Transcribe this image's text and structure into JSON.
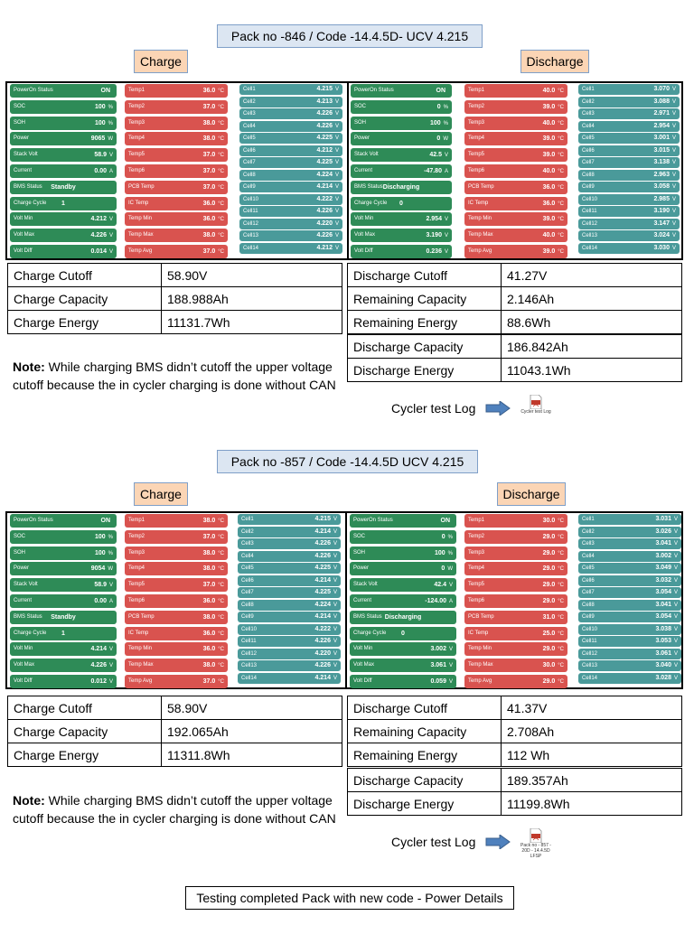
{
  "footer": "Testing completed Pack with new code - Power Details",
  "packs": [
    {
      "title": "Pack no -846  / Code -14.4.5D- UCV 4.215",
      "charge_label": "Charge",
      "discharge_label": "Discharge",
      "charge_screen": {
        "status": [
          {
            "label": "PowerOn Status",
            "value": "ON",
            "unit": ""
          },
          {
            "label": "SOC",
            "value": "100",
            "unit": "%"
          },
          {
            "label": "SOH",
            "value": "100",
            "unit": "%"
          },
          {
            "label": "Power",
            "value": "9065",
            "unit": "W"
          },
          {
            "label": "Stack Volt",
            "value": "58.9",
            "unit": "V"
          },
          {
            "label": "Current",
            "value": "0.00",
            "unit": "A"
          },
          {
            "label": "BMS Status",
            "value": "Standby",
            "unit": ""
          },
          {
            "label": "Charge Cycle",
            "value": "1",
            "unit": ""
          },
          {
            "label": "Volt Min",
            "value": "4.212",
            "unit": "V"
          },
          {
            "label": "Volt Max",
            "value": "4.226",
            "unit": "V"
          },
          {
            "label": "Volt Diff",
            "value": "0.014",
            "unit": "V"
          }
        ],
        "temps": [
          {
            "label": "Temp1",
            "value": "36.0",
            "unit": "°C"
          },
          {
            "label": "Temp2",
            "value": "37.0",
            "unit": "°C"
          },
          {
            "label": "Temp3",
            "value": "38.0",
            "unit": "°C"
          },
          {
            "label": "Temp4",
            "value": "38.0",
            "unit": "°C"
          },
          {
            "label": "Temp5",
            "value": "37.0",
            "unit": "°C"
          },
          {
            "label": "Temp6",
            "value": "37.0",
            "unit": "°C"
          },
          {
            "label": "PCB Temp",
            "value": "37.0",
            "unit": "°C"
          },
          {
            "label": "IC Temp",
            "value": "36.0",
            "unit": "°C"
          },
          {
            "label": "Temp Min",
            "value": "36.0",
            "unit": "°C"
          },
          {
            "label": "Temp Max",
            "value": "38.0",
            "unit": "°C"
          },
          {
            "label": "Temp Avg",
            "value": "37.0",
            "unit": "°C"
          }
        ],
        "cells": [
          {
            "label": "Cell1",
            "value": "4.215",
            "unit": "V"
          },
          {
            "label": "Cell2",
            "value": "4.213",
            "unit": "V"
          },
          {
            "label": "Cell3",
            "value": "4.226",
            "unit": "V"
          },
          {
            "label": "Cell4",
            "value": "4.226",
            "unit": "V"
          },
          {
            "label": "Cell5",
            "value": "4.225",
            "unit": "V"
          },
          {
            "label": "Cell6",
            "value": "4.212",
            "unit": "V"
          },
          {
            "label": "Cell7",
            "value": "4.225",
            "unit": "V"
          },
          {
            "label": "Cell8",
            "value": "4.224",
            "unit": "V"
          },
          {
            "label": "Cell9",
            "value": "4.214",
            "unit": "V"
          },
          {
            "label": "Cell10",
            "value": "4.222",
            "unit": "V"
          },
          {
            "label": "Cell11",
            "value": "4.226",
            "unit": "V"
          },
          {
            "label": "Cell12",
            "value": "4.220",
            "unit": "V"
          },
          {
            "label": "Cell13",
            "value": "4.226",
            "unit": "V"
          },
          {
            "label": "Cell14",
            "value": "4.212",
            "unit": "V"
          }
        ]
      },
      "discharge_screen": {
        "status": [
          {
            "label": "PowerOn Status",
            "value": "ON",
            "unit": ""
          },
          {
            "label": "SOC",
            "value": "0",
            "unit": "%"
          },
          {
            "label": "SOH",
            "value": "100",
            "unit": "%"
          },
          {
            "label": "Power",
            "value": "0",
            "unit": "W"
          },
          {
            "label": "Stack Volt",
            "value": "42.5",
            "unit": "V"
          },
          {
            "label": "Current",
            "value": "-47.80",
            "unit": "A"
          },
          {
            "label": "BMS Status",
            "value": "Discharging",
            "unit": ""
          },
          {
            "label": "Charge Cycle",
            "value": "0",
            "unit": ""
          },
          {
            "label": "Volt Min",
            "value": "2.954",
            "unit": "V"
          },
          {
            "label": "Volt Max",
            "value": "3.190",
            "unit": "V"
          },
          {
            "label": "Volt Diff",
            "value": "0.236",
            "unit": "V"
          }
        ],
        "temps": [
          {
            "label": "Temp1",
            "value": "40.0",
            "unit": "°C"
          },
          {
            "label": "Temp2",
            "value": "39.0",
            "unit": "°C"
          },
          {
            "label": "Temp3",
            "value": "40.0",
            "unit": "°C"
          },
          {
            "label": "Temp4",
            "value": "39.0",
            "unit": "°C"
          },
          {
            "label": "Temp5",
            "value": "39.0",
            "unit": "°C"
          },
          {
            "label": "Temp6",
            "value": "40.0",
            "unit": "°C"
          },
          {
            "label": "PCB Temp",
            "value": "36.0",
            "unit": "°C"
          },
          {
            "label": "IC Temp",
            "value": "36.0",
            "unit": "°C"
          },
          {
            "label": "Temp Min",
            "value": "39.0",
            "unit": "°C"
          },
          {
            "label": "Temp Max",
            "value": "40.0",
            "unit": "°C"
          },
          {
            "label": "Temp Avg",
            "value": "39.0",
            "unit": "°C"
          }
        ],
        "cells": [
          {
            "label": "Cell1",
            "value": "3.070",
            "unit": "V"
          },
          {
            "label": "Cell2",
            "value": "3.088",
            "unit": "V"
          },
          {
            "label": "Cell3",
            "value": "2.971",
            "unit": "V"
          },
          {
            "label": "Cell4",
            "value": "2.954",
            "unit": "V"
          },
          {
            "label": "Cell5",
            "value": "3.001",
            "unit": "V"
          },
          {
            "label": "Cell6",
            "value": "3.015",
            "unit": "V"
          },
          {
            "label": "Cell7",
            "value": "3.138",
            "unit": "V"
          },
          {
            "label": "Cell8",
            "value": "2.963",
            "unit": "V"
          },
          {
            "label": "Cell9",
            "value": "3.058",
            "unit": "V"
          },
          {
            "label": "Cell10",
            "value": "2.985",
            "unit": "V"
          },
          {
            "label": "Cell11",
            "value": "3.190",
            "unit": "V"
          },
          {
            "label": "Cell12",
            "value": "3.147",
            "unit": "V"
          },
          {
            "label": "Cell13",
            "value": "3.024",
            "unit": "V"
          },
          {
            "label": "Cell14",
            "value": "3.030",
            "unit": "V"
          }
        ]
      },
      "charge_table": [
        {
          "key": "Charge Cutoff",
          "value": "58.90V"
        },
        {
          "key": "Charge Capacity",
          "value": "188.988Ah"
        },
        {
          "key": "Charge Energy",
          "value": "11131.7Wh"
        }
      ],
      "discharge_table_1": [
        {
          "key": "Discharge Cutoff",
          "value": "41.27V"
        },
        {
          "key": "Remaining Capacity",
          "value": "2.146Ah"
        },
        {
          "key": "Remaining  Energy",
          "value": "88.6Wh"
        }
      ],
      "discharge_table_2": [
        {
          "key": "Discharge Capacity",
          "value": "186.842Ah"
        },
        {
          "key": "Discharge Energy",
          "value": "11043.1Wh"
        }
      ],
      "note_label": "Note:",
      "note_text": " While charging BMS didn’t cutoff the upper voltage cutoff because the in cycler charging is done without CAN",
      "log_label": "Cycler test Log",
      "log_file_caption": "Cycler test Log"
    },
    {
      "title": "Pack no -857  / Code -14.4.5D UCV 4.215",
      "charge_label": "Charge",
      "discharge_label": "Discharge",
      "charge_screen": {
        "status": [
          {
            "label": "PowerOn Status",
            "value": "ON",
            "unit": ""
          },
          {
            "label": "SOC",
            "value": "100",
            "unit": "%"
          },
          {
            "label": "SOH",
            "value": "100",
            "unit": "%"
          },
          {
            "label": "Power",
            "value": "9054",
            "unit": "W"
          },
          {
            "label": "Stack Volt",
            "value": "58.9",
            "unit": "V"
          },
          {
            "label": "Current",
            "value": "0.00",
            "unit": "A"
          },
          {
            "label": "BMS Status",
            "value": "Standby",
            "unit": ""
          },
          {
            "label": "Charge Cycle",
            "value": "1",
            "unit": ""
          },
          {
            "label": "Volt Min",
            "value": "4.214",
            "unit": "V"
          },
          {
            "label": "Volt Max",
            "value": "4.226",
            "unit": "V"
          },
          {
            "label": "Volt Diff",
            "value": "0.012",
            "unit": "V"
          }
        ],
        "temps": [
          {
            "label": "Temp1",
            "value": "38.0",
            "unit": "°C"
          },
          {
            "label": "Temp2",
            "value": "37.0",
            "unit": "°C"
          },
          {
            "label": "Temp3",
            "value": "38.0",
            "unit": "°C"
          },
          {
            "label": "Temp4",
            "value": "38.0",
            "unit": "°C"
          },
          {
            "label": "Temp5",
            "value": "37.0",
            "unit": "°C"
          },
          {
            "label": "Temp6",
            "value": "36.0",
            "unit": "°C"
          },
          {
            "label": "PCB Temp",
            "value": "38.0",
            "unit": "°C"
          },
          {
            "label": "IC Temp",
            "value": "36.0",
            "unit": "°C"
          },
          {
            "label": "Temp Min",
            "value": "36.0",
            "unit": "°C"
          },
          {
            "label": "Temp Max",
            "value": "38.0",
            "unit": "°C"
          },
          {
            "label": "Temp Avg",
            "value": "37.0",
            "unit": "°C"
          }
        ],
        "cells": [
          {
            "label": "Cell1",
            "value": "4.215",
            "unit": "V"
          },
          {
            "label": "Cell2",
            "value": "4.214",
            "unit": "V"
          },
          {
            "label": "Cell3",
            "value": "4.226",
            "unit": "V"
          },
          {
            "label": "Cell4",
            "value": "4.226",
            "unit": "V"
          },
          {
            "label": "Cell5",
            "value": "4.225",
            "unit": "V"
          },
          {
            "label": "Cell6",
            "value": "4.214",
            "unit": "V"
          },
          {
            "label": "Cell7",
            "value": "4.225",
            "unit": "V"
          },
          {
            "label": "Cell8",
            "value": "4.224",
            "unit": "V"
          },
          {
            "label": "Cell9",
            "value": "4.214",
            "unit": "V"
          },
          {
            "label": "Cell10",
            "value": "4.222",
            "unit": "V"
          },
          {
            "label": "Cell11",
            "value": "4.226",
            "unit": "V"
          },
          {
            "label": "Cell12",
            "value": "4.220",
            "unit": "V"
          },
          {
            "label": "Cell13",
            "value": "4.226",
            "unit": "V"
          },
          {
            "label": "Cell14",
            "value": "4.214",
            "unit": "V"
          }
        ]
      },
      "discharge_screen": {
        "status": [
          {
            "label": "PowerOn Status",
            "value": "ON",
            "unit": ""
          },
          {
            "label": "SOC",
            "value": "0",
            "unit": "%"
          },
          {
            "label": "SOH",
            "value": "100",
            "unit": "%"
          },
          {
            "label": "Power",
            "value": "0",
            "unit": "W"
          },
          {
            "label": "Stack Volt",
            "value": "42.4",
            "unit": "V"
          },
          {
            "label": "Current",
            "value": "-124.00",
            "unit": "A"
          },
          {
            "label": "BMS Status",
            "value": "Discharging",
            "unit": ""
          },
          {
            "label": "Charge Cycle",
            "value": "0",
            "unit": ""
          },
          {
            "label": "Volt Min",
            "value": "3.002",
            "unit": "V"
          },
          {
            "label": "Volt Max",
            "value": "3.061",
            "unit": "V"
          },
          {
            "label": "Volt Diff",
            "value": "0.059",
            "unit": "V"
          }
        ],
        "temps": [
          {
            "label": "Temp1",
            "value": "30.0",
            "unit": "°C"
          },
          {
            "label": "Temp2",
            "value": "29.0",
            "unit": "°C"
          },
          {
            "label": "Temp3",
            "value": "29.0",
            "unit": "°C"
          },
          {
            "label": "Temp4",
            "value": "29.0",
            "unit": "°C"
          },
          {
            "label": "Temp5",
            "value": "29.0",
            "unit": "°C"
          },
          {
            "label": "Temp6",
            "value": "29.0",
            "unit": "°C"
          },
          {
            "label": "PCB Temp",
            "value": "31.0",
            "unit": "°C"
          },
          {
            "label": "IC Temp",
            "value": "25.0",
            "unit": "°C"
          },
          {
            "label": "Temp Min",
            "value": "29.0",
            "unit": "°C"
          },
          {
            "label": "Temp Max",
            "value": "30.0",
            "unit": "°C"
          },
          {
            "label": "Temp Avg",
            "value": "29.0",
            "unit": "°C"
          }
        ],
        "cells": [
          {
            "label": "Cell1",
            "value": "3.031",
            "unit": "V"
          },
          {
            "label": "Cell2",
            "value": "3.026",
            "unit": "V"
          },
          {
            "label": "Cell3",
            "value": "3.041",
            "unit": "V"
          },
          {
            "label": "Cell4",
            "value": "3.002",
            "unit": "V"
          },
          {
            "label": "Cell5",
            "value": "3.049",
            "unit": "V"
          },
          {
            "label": "Cell6",
            "value": "3.032",
            "unit": "V"
          },
          {
            "label": "Cell7",
            "value": "3.054",
            "unit": "V"
          },
          {
            "label": "Cell8",
            "value": "3.041",
            "unit": "V"
          },
          {
            "label": "Cell9",
            "value": "3.054",
            "unit": "V"
          },
          {
            "label": "Cell10",
            "value": "3.038",
            "unit": "V"
          },
          {
            "label": "Cell11",
            "value": "3.053",
            "unit": "V"
          },
          {
            "label": "Cell12",
            "value": "3.061",
            "unit": "V"
          },
          {
            "label": "Cell13",
            "value": "3.040",
            "unit": "V"
          },
          {
            "label": "Cell14",
            "value": "3.028",
            "unit": "V"
          }
        ]
      },
      "charge_table": [
        {
          "key": "Charge Cutoff",
          "value": "58.90V"
        },
        {
          "key": "Charge Capacity",
          "value": "192.065Ah"
        },
        {
          "key": "Charge Energy",
          "value": "11311.8Wh"
        }
      ],
      "discharge_table_1": [
        {
          "key": "Discharge Cutoff",
          "value": "41.37V"
        },
        {
          "key": "Remaining Capacity",
          "value": "2.708Ah"
        },
        {
          "key": "Remaining  Energy",
          "value": "112 Wh"
        }
      ],
      "discharge_table_2": [
        {
          "key": "Discharge Capacity",
          "value": "189.357Ah"
        },
        {
          "key": "Discharge Energy",
          "value": "11199.8Wh"
        }
      ],
      "note_label": "Note:",
      "note_text": " While charging BMS didn’t cutoff the upper voltage cutoff because the in cycler charging is done without CAN",
      "log_label": "Cycler test Log",
      "log_file_caption": "Pack no - 857 - 20D - 14.4.5D LFSP"
    }
  ],
  "colors": {
    "status_tile": "#2e8b57",
    "temp_tile": "#d9534f",
    "cell_tile": "#4a9a9a",
    "title_fill": "#dce6f2",
    "tag_fill": "#fbd5b5"
  }
}
